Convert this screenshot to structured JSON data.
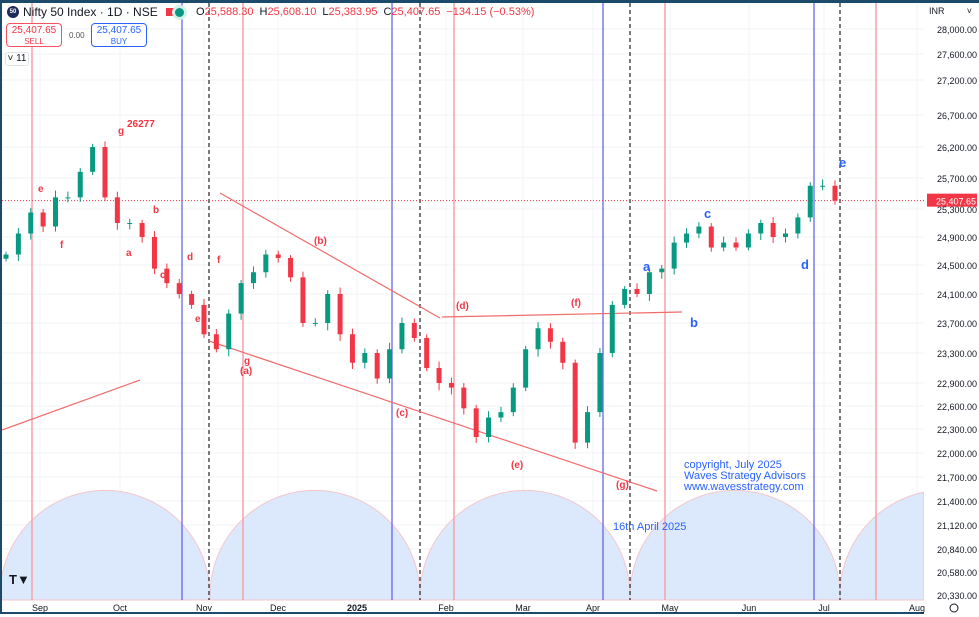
{
  "header": {
    "logo_text": "50",
    "symbol": "Nifty 50 Index · 1D · NSE",
    "open_label": "O",
    "open": "25,588.30",
    "high_label": "H",
    "high": "25,608.10",
    "low_label": "L",
    "low": "25,383.95",
    "close_label": "C",
    "close": "25,407.65",
    "change": "−134.15 (−0.53%)"
  },
  "trade": {
    "sell_price": "25,407.65",
    "sell_label": "SELL",
    "spread": "0.00",
    "buy_price": "25,407.65",
    "buy_label": "BUY"
  },
  "indicators_toggle": "11",
  "currency": "INR",
  "colors": {
    "up": "#089981",
    "down": "#f23645",
    "annotation_red": "#f23645",
    "annotation_blue": "#2962ff",
    "cycle_fill": "#dce8fb"
  },
  "annotations": {
    "copyright": [
      "copyright, July 2025",
      "Waves Strategy Advisors",
      "www.wavesstrategy.com"
    ],
    "date_note": "16th April 2025"
  },
  "tv_logo": "TV",
  "settings_icon": "gear-icon",
  "chart_data": {
    "type": "candlestick",
    "title": "Nifty 50 Index · 1D · NSE",
    "ylim": [
      20330,
      28000
    ],
    "y_scale": "log",
    "grid": true,
    "y_ticks": [
      "28,000.00",
      "27,600.00",
      "27,200.00",
      "26,700.00",
      "26,200.00",
      "25,700.00",
      "25,300.00",
      "24,900.00",
      "24,500.00",
      "24,100.00",
      "23,700.00",
      "23,300.00",
      "22,900.00",
      "22,600.00",
      "22,300.00",
      "22,000.00",
      "21,700.00",
      "21,400.00",
      "21,120.00",
      "20,840.00",
      "20,580.00",
      "20,330.00"
    ],
    "x_ticks": [
      "Sep",
      "Oct",
      "Nov",
      "Dec",
      "2025",
      "Feb",
      "Mar",
      "Apr",
      "May",
      "Jun",
      "Jul",
      "Aug"
    ],
    "last_price": "25,407.65",
    "closes": [
      24650,
      24950,
      25250,
      25050,
      25450,
      25450,
      25800,
      26200,
      25450,
      25100,
      25100,
      24900,
      24450,
      24250,
      24100,
      23950,
      23550,
      23350,
      23830,
      24250,
      24400,
      24650,
      24600,
      24330,
      23700,
      23700,
      24100,
      23550,
      23170,
      23300,
      22960,
      23350,
      23700,
      23500,
      23100,
      22900,
      22840,
      22570,
      22200,
      22450,
      22520,
      22840,
      23350,
      23630,
      23450,
      23170,
      22130,
      22520,
      23300,
      23950,
      24170,
      24100,
      24400,
      24450,
      24820,
      24950,
      25050,
      24750,
      24820,
      24750,
      24950,
      25100,
      24900,
      24950,
      25180,
      25600,
      25600,
      25407
    ],
    "wave_labels": [
      {
        "text": "g",
        "color": "red"
      },
      {
        "text": "26277",
        "color": "red"
      },
      {
        "text": "e",
        "color": "red"
      },
      {
        "text": "f",
        "color": "red"
      },
      {
        "text": "a",
        "color": "red"
      },
      {
        "text": "b",
        "color": "red"
      },
      {
        "text": "c",
        "color": "red"
      },
      {
        "text": "d",
        "color": "red"
      },
      {
        "text": "e",
        "color": "red"
      },
      {
        "text": "f",
        "color": "red"
      },
      {
        "text": "g",
        "color": "red"
      },
      {
        "text": "(a)",
        "color": "red"
      },
      {
        "text": "(b)",
        "color": "red"
      },
      {
        "text": "(c)",
        "color": "red"
      },
      {
        "text": "(d)",
        "color": "red"
      },
      {
        "text": "(e)",
        "color": "red"
      },
      {
        "text": "(f)",
        "color": "red"
      },
      {
        "text": "(g)",
        "color": "red"
      },
      {
        "text": "a",
        "color": "blue"
      },
      {
        "text": "b",
        "color": "blue"
      },
      {
        "text": "c",
        "color": "blue"
      },
      {
        "text": "d",
        "color": "blue"
      },
      {
        "text": "e",
        "color": "blue"
      }
    ]
  }
}
